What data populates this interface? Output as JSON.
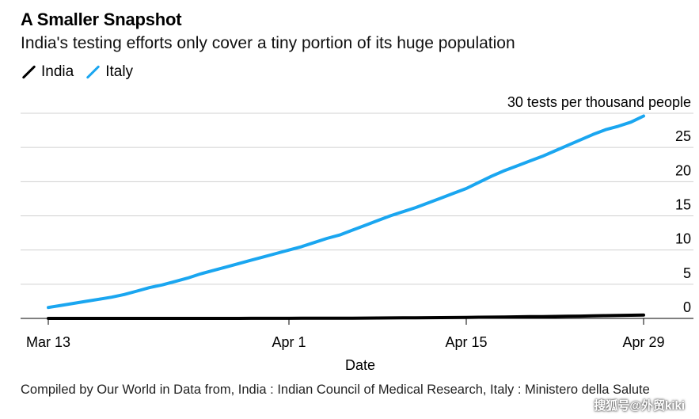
{
  "title": "A Smaller Snapshot",
  "subtitle": "India's testing efforts only cover a tiny portion of its huge population",
  "legend": [
    {
      "label": "India",
      "color": "#000000"
    },
    {
      "label": "Italy",
      "color": "#1aa6f0"
    }
  ],
  "source": "Compiled by Our World in Data from, India : Indian Council of Medical Research, Italy : Ministero della Salute",
  "watermark": "搜狐号@外贸kiki",
  "chart_data": {
    "type": "line",
    "title": "A Smaller Snapshot",
    "xlabel": "Date",
    "ylabel": "",
    "unit_label": "30 tests per thousand people",
    "x": [
      "Mar 13",
      "Mar 14",
      "Mar 15",
      "Mar 16",
      "Mar 17",
      "Mar 18",
      "Mar 19",
      "Mar 20",
      "Mar 21",
      "Mar 22",
      "Mar 23",
      "Mar 24",
      "Mar 25",
      "Mar 26",
      "Mar 27",
      "Mar 28",
      "Mar 29",
      "Mar 30",
      "Mar 31",
      "Apr 1",
      "Apr 2",
      "Apr 3",
      "Apr 4",
      "Apr 5",
      "Apr 6",
      "Apr 7",
      "Apr 8",
      "Apr 9",
      "Apr 10",
      "Apr 11",
      "Apr 12",
      "Apr 13",
      "Apr 14",
      "Apr 15",
      "Apr 16",
      "Apr 17",
      "Apr 18",
      "Apr 19",
      "Apr 20",
      "Apr 21",
      "Apr 22",
      "Apr 23",
      "Apr 24",
      "Apr 25",
      "Apr 26",
      "Apr 27",
      "Apr 28",
      "Apr 29"
    ],
    "x_ticks": [
      "Mar 13",
      "Apr 1",
      "Apr 15",
      "Apr 29"
    ],
    "x_tick_index": [
      0,
      19,
      33,
      47
    ],
    "y_ticks": [
      0,
      5,
      10,
      15,
      20,
      25,
      30
    ],
    "y_tick_labels": [
      "0",
      "5",
      "10",
      "15",
      "20",
      "25",
      "30 tests per thousand people"
    ],
    "ylim": [
      0,
      30
    ],
    "grid": true,
    "legend_position": "top-left",
    "series": [
      {
        "name": "Italy",
        "color": "#1aa6f0",
        "values": [
          1.6,
          1.9,
          2.2,
          2.5,
          2.8,
          3.1,
          3.5,
          4.0,
          4.5,
          4.9,
          5.4,
          5.9,
          6.5,
          7.0,
          7.5,
          8.0,
          8.5,
          9.0,
          9.5,
          10.0,
          10.5,
          11.1,
          11.7,
          12.2,
          12.9,
          13.6,
          14.3,
          15.0,
          15.6,
          16.2,
          16.9,
          17.6,
          18.3,
          19.0,
          19.9,
          20.8,
          21.6,
          22.3,
          23.0,
          23.7,
          24.5,
          25.3,
          26.1,
          26.9,
          27.6,
          28.1,
          28.7,
          29.6
        ]
      },
      {
        "name": "India",
        "color": "#000000",
        "values": [
          0.0,
          0.0,
          0.0,
          0.0,
          0.0,
          0.0,
          0.0,
          0.0,
          0.0,
          0.0,
          0.0,
          0.0,
          0.0,
          0.0,
          0.0,
          0.0,
          0.01,
          0.01,
          0.01,
          0.01,
          0.02,
          0.02,
          0.02,
          0.03,
          0.04,
          0.05,
          0.06,
          0.07,
          0.08,
          0.09,
          0.1,
          0.12,
          0.13,
          0.15,
          0.17,
          0.19,
          0.21,
          0.23,
          0.25,
          0.27,
          0.29,
          0.31,
          0.34,
          0.37,
          0.4,
          0.43,
          0.46,
          0.5
        ]
      }
    ]
  }
}
